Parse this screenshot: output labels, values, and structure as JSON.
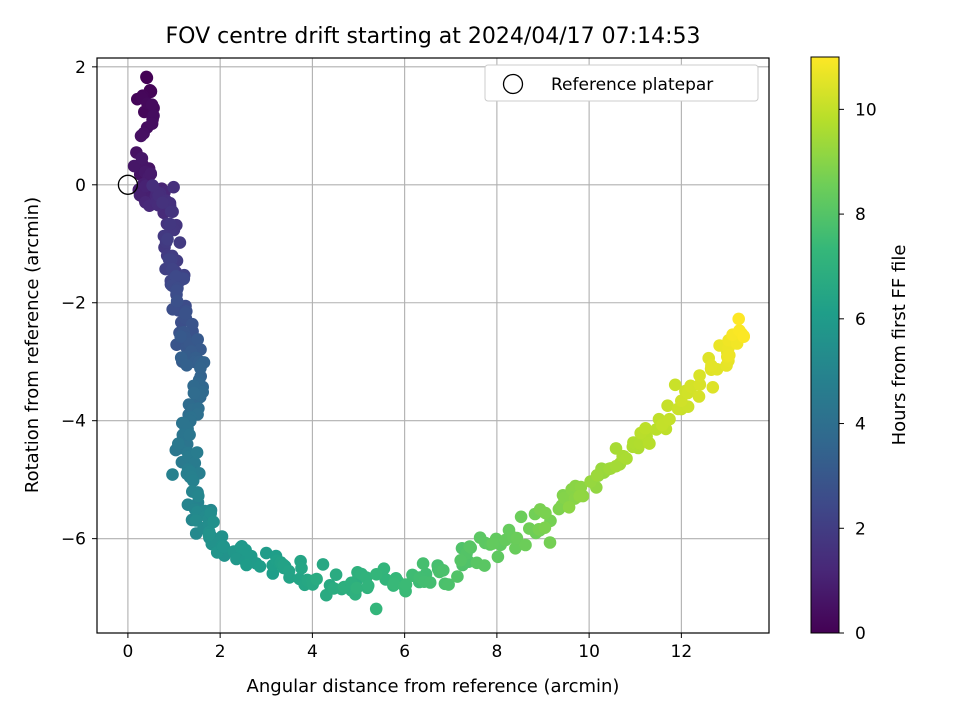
{
  "chart_data": {
    "type": "scatter",
    "title": "FOV centre drift starting at 2024/04/17 07:14:53",
    "xlabel": "Angular distance from reference (arcmin)",
    "ylabel": "Rotation from reference (arcmin)",
    "xlim": [
      -0.67,
      13.9
    ],
    "ylim": [
      -7.6,
      2.15
    ],
    "xticks": [
      0,
      2,
      4,
      6,
      8,
      10,
      12
    ],
    "yticks": [
      2,
      0,
      -2,
      -4,
      -6
    ],
    "grid": true,
    "legend": {
      "position": "top-right",
      "entries": [
        {
          "label": "Reference platepar",
          "marker": "open-circle"
        }
      ]
    },
    "reference_point": {
      "x": 0,
      "y": 0
    },
    "colorbar": {
      "label": "Hours from first FF file",
      "range": [
        0,
        11
      ],
      "ticks": [
        0,
        2,
        4,
        6,
        8,
        10
      ],
      "colormap": "viridis",
      "colors": [
        "#440154",
        "#482878",
        "#3e4989",
        "#31688e",
        "#26828e",
        "#1f9e89",
        "#35b779",
        "#6ece58",
        "#b5de2b",
        "#fde725"
      ]
    },
    "trend_x": [
      0.45,
      0.45,
      0.3,
      0.45,
      0.6,
      0.8,
      0.9,
      0.95,
      1.0,
      1.2,
      1.3,
      1.4,
      1.5,
      1.45,
      1.3,
      1.3,
      1.35,
      1.5,
      1.7,
      2.0,
      2.6,
      3.3,
      4.0,
      4.7,
      5.3,
      6.0,
      6.7,
      7.4,
      8.1,
      8.8,
      9.5,
      10.1,
      10.7,
      11.3,
      11.9,
      12.5,
      13.0,
      13.3
    ],
    "trend_y": [
      1.7,
      1.3,
      0.35,
      -0.1,
      -0.3,
      -0.15,
      -0.85,
      -1.4,
      -1.6,
      -2.2,
      -2.6,
      -2.95,
      -3.3,
      -3.7,
      -4.1,
      -4.5,
      -4.95,
      -5.4,
      -5.85,
      -6.1,
      -6.3,
      -6.5,
      -6.65,
      -6.75,
      -6.8,
      -6.75,
      -6.55,
      -6.35,
      -6.05,
      -5.8,
      -5.45,
      -5.05,
      -4.6,
      -4.25,
      -3.8,
      -3.3,
      -2.85,
      -2.5
    ],
    "point_count": 400
  }
}
